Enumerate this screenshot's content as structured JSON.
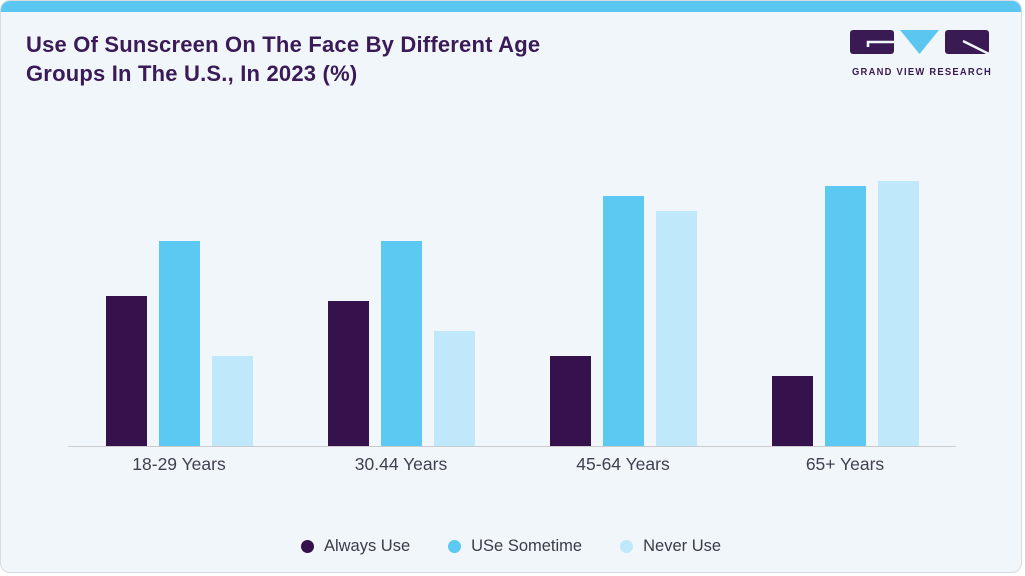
{
  "header": {
    "title_lines": [
      "Use Of Sunscreen On The Face By Different Age",
      "Groups In The U.S., In 2023 (%)"
    ],
    "logo_text": "GRAND VIEW RESEARCH"
  },
  "colors": {
    "accent_bar": "#5BC7F0",
    "card_background": "#F0F6FA",
    "title_text": "#3A1A57",
    "axis_line": "#CBCBCB",
    "axis_label_text": "#413F50",
    "logo_purple": "#3A1A52",
    "logo_blue": "#5BC7F0",
    "always_use": "#35124B",
    "use_sometime": "#5BC9F1",
    "never_use": "#BFE8FA"
  },
  "chart_data": {
    "type": "bar",
    "title": "Use Of Sunscreen On The Face By Different Age Groups In The U.S., In 2023 (%)",
    "categories": [
      "18-29 Years",
      "30.44 Years",
      "45-64 Years",
      "65+ Years"
    ],
    "series": [
      {
        "name": "Always Use",
        "color": "#35124B",
        "values": [
          30,
          29,
          18,
          14
        ]
      },
      {
        "name": "USe Sometime",
        "color": "#5BC9F1",
        "values": [
          41,
          41,
          50,
          52
        ]
      },
      {
        "name": "Never Use",
        "color": "#BFE8FA",
        "values": [
          18,
          23,
          47,
          53
        ]
      }
    ],
    "unit": "%",
    "ylim": [
      0,
      60
    ],
    "y_axis_visible": false,
    "grid": false,
    "legend_position": "bottom"
  }
}
